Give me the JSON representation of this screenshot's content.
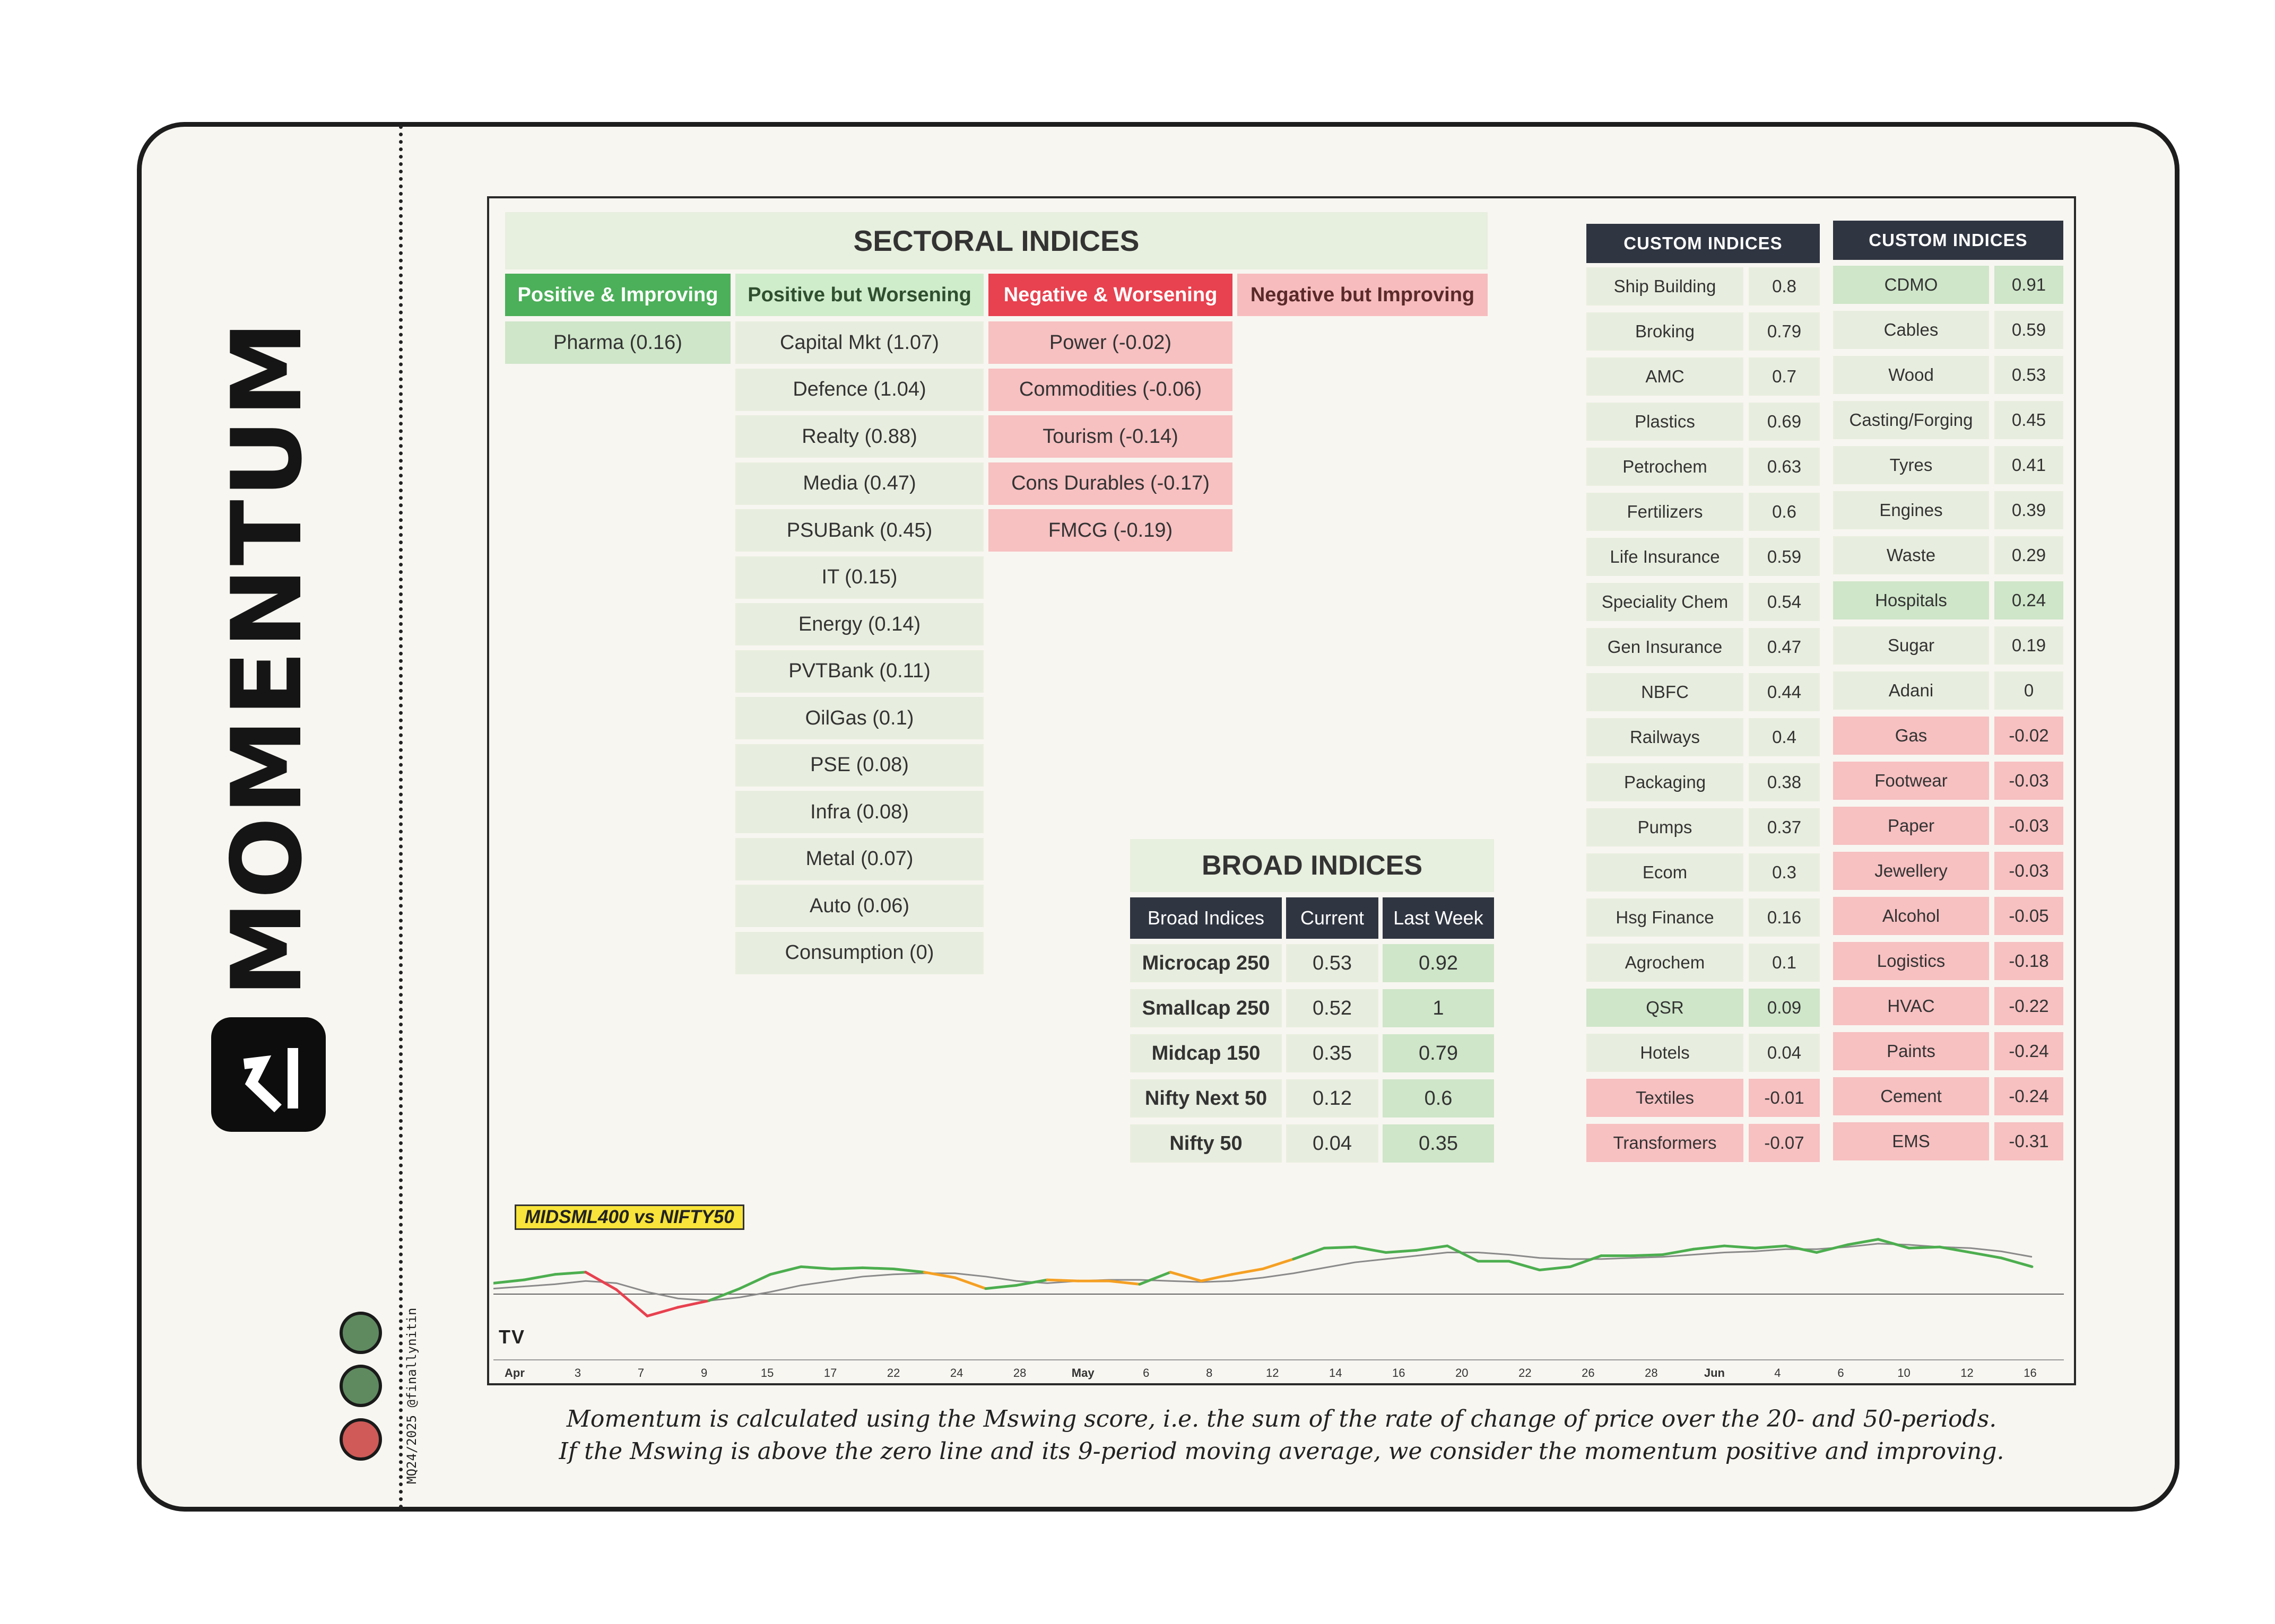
{
  "brand": {
    "wordmark": "MOMENTUM",
    "credit": "MQ24/2025 @finallynitin"
  },
  "colors": {
    "pos_improving": "#4caf59",
    "pos_worsening": "#cfeccb",
    "neg_worsening": "#e8414f",
    "neg_improving": "#f7bcbe",
    "green_cell": "#cfe6c9",
    "neutral_cell": "#e8eedf",
    "red_cell": "#f7c0c1",
    "dark_header": "#2f3541",
    "light_green": "#5f8a60",
    "light_red": "#cf5a57"
  },
  "status_lights": [
    {
      "name": "green"
    },
    {
      "name": "green"
    },
    {
      "name": "red"
    }
  ],
  "sectoral": {
    "title": "SECTORAL INDICES",
    "columns": [
      {
        "label": "Positive & Improving",
        "items": [
          "Pharma (0.16)"
        ]
      },
      {
        "label": "Positive but Worsening",
        "items": [
          "Capital Mkt (1.07)",
          "Defence (1.04)",
          "Realty (0.88)",
          "Media (0.47)",
          "PSUBank (0.45)",
          "IT (0.15)",
          "Energy (0.14)",
          "PVTBank (0.11)",
          "OilGas (0.1)",
          "PSE (0.08)",
          "Infra (0.08)",
          "Metal (0.07)",
          "Auto (0.06)",
          "Consumption (0)"
        ]
      },
      {
        "label": "Negative & Worsening",
        "items": [
          "Power (-0.02)",
          "Commodities (-0.06)",
          "Tourism (-0.14)",
          "Cons Durables (-0.17)",
          "FMCG (-0.19)"
        ]
      },
      {
        "label": "Negative but Improving",
        "items": []
      }
    ]
  },
  "broad": {
    "title": "BROAD INDICES",
    "headers": [
      "Broad Indices",
      "Current",
      "Last Week"
    ],
    "rows": [
      {
        "name": "Microcap 250",
        "current": "0.53",
        "last_week": "0.92"
      },
      {
        "name": "Smallcap 250",
        "current": "0.52",
        "last_week": "1"
      },
      {
        "name": "Midcap 150",
        "current": "0.35",
        "last_week": "0.79"
      },
      {
        "name": "Nifty Next 50",
        "current": "0.12",
        "last_week": "0.6"
      },
      {
        "name": "Nifty 50",
        "current": "0.04",
        "last_week": "0.35"
      }
    ]
  },
  "custom1": {
    "title": "CUSTOM INDICES",
    "rows": [
      {
        "name": "Ship Building",
        "value": "0.8",
        "tone": "neutral"
      },
      {
        "name": "Broking",
        "value": "0.79",
        "tone": "neutral"
      },
      {
        "name": "AMC",
        "value": "0.7",
        "tone": "neutral"
      },
      {
        "name": "Plastics",
        "value": "0.69",
        "tone": "neutral"
      },
      {
        "name": "Petrochem",
        "value": "0.63",
        "tone": "neutral"
      },
      {
        "name": "Fertilizers",
        "value": "0.6",
        "tone": "neutral"
      },
      {
        "name": "Life Insurance",
        "value": "0.59",
        "tone": "neutral"
      },
      {
        "name": "Speciality Chem",
        "value": "0.54",
        "tone": "neutral"
      },
      {
        "name": "Gen Insurance",
        "value": "0.47",
        "tone": "neutral"
      },
      {
        "name": "NBFC",
        "value": "0.44",
        "tone": "neutral"
      },
      {
        "name": "Railways",
        "value": "0.4",
        "tone": "neutral"
      },
      {
        "name": "Packaging",
        "value": "0.38",
        "tone": "neutral"
      },
      {
        "name": "Pumps",
        "value": "0.37",
        "tone": "neutral"
      },
      {
        "name": "Ecom",
        "value": "0.3",
        "tone": "neutral"
      },
      {
        "name": "Hsg Finance",
        "value": "0.16",
        "tone": "neutral"
      },
      {
        "name": "Agrochem",
        "value": "0.1",
        "tone": "neutral"
      },
      {
        "name": "QSR",
        "value": "0.09",
        "tone": "green"
      },
      {
        "name": "Hotels",
        "value": "0.04",
        "tone": "neutral"
      },
      {
        "name": "Textiles",
        "value": "-0.01",
        "tone": "red"
      },
      {
        "name": "Transformers",
        "value": "-0.07",
        "tone": "red"
      }
    ]
  },
  "custom2": {
    "title": "CUSTOM INDICES",
    "rows": [
      {
        "name": "CDMO",
        "value": "0.91",
        "tone": "green"
      },
      {
        "name": "Cables",
        "value": "0.59",
        "tone": "neutral"
      },
      {
        "name": "Wood",
        "value": "0.53",
        "tone": "neutral"
      },
      {
        "name": "Casting/Forging",
        "value": "0.45",
        "tone": "neutral"
      },
      {
        "name": "Tyres",
        "value": "0.41",
        "tone": "neutral"
      },
      {
        "name": "Engines",
        "value": "0.39",
        "tone": "neutral"
      },
      {
        "name": "Waste",
        "value": "0.29",
        "tone": "neutral"
      },
      {
        "name": "Hospitals",
        "value": "0.24",
        "tone": "green"
      },
      {
        "name": "Sugar",
        "value": "0.19",
        "tone": "neutral"
      },
      {
        "name": "Adani",
        "value": "0",
        "tone": "neutral"
      },
      {
        "name": "Gas",
        "value": "-0.02",
        "tone": "red"
      },
      {
        "name": "Footwear",
        "value": "-0.03",
        "tone": "red"
      },
      {
        "name": "Paper",
        "value": "-0.03",
        "tone": "red"
      },
      {
        "name": "Jewellery",
        "value": "-0.03",
        "tone": "red"
      },
      {
        "name": "Alcohol",
        "value": "-0.05",
        "tone": "red"
      },
      {
        "name": "Logistics",
        "value": "-0.18",
        "tone": "red"
      },
      {
        "name": "HVAC",
        "value": "-0.22",
        "tone": "red"
      },
      {
        "name": "Paints",
        "value": "-0.24",
        "tone": "red"
      },
      {
        "name": "Cement",
        "value": "-0.24",
        "tone": "red"
      },
      {
        "name": "EMS",
        "value": "-0.31",
        "tone": "red"
      }
    ]
  },
  "chart_data": {
    "type": "line",
    "title": "MIDSML400 vs NIFTY50",
    "xlabel": "",
    "ylabel": "",
    "x_ticks": [
      "Apr",
      "3",
      "7",
      "9",
      "15",
      "17",
      "22",
      "24",
      "28",
      "May",
      "6",
      "8",
      "12",
      "14",
      "16",
      "20",
      "22",
      "26",
      "28",
      "Jun",
      "4",
      "6",
      "10",
      "12",
      "16"
    ],
    "ylim": [
      -0.3,
      0.6
    ],
    "zero_line": 0,
    "series": [
      {
        "name": "MIDSML400 vs NIFTY50 Mswing",
        "values": [
          0.1,
          0.13,
          0.18,
          0.2,
          0.04,
          -0.2,
          -0.12,
          -0.06,
          0.05,
          0.18,
          0.25,
          0.23,
          0.24,
          0.23,
          0.2,
          0.15,
          0.05,
          0.08,
          0.13,
          0.12,
          0.12,
          0.09,
          0.2,
          0.12,
          0.18,
          0.23,
          0.32,
          0.42,
          0.43,
          0.38,
          0.4,
          0.44,
          0.3,
          0.3,
          0.22,
          0.25,
          0.35,
          0.35,
          0.36,
          0.41,
          0.44,
          0.42,
          0.44,
          0.38,
          0.45,
          0.5,
          0.42,
          0.43,
          0.38,
          0.33,
          0.25
        ],
        "states": [
          "pos_worsening",
          "pos_improving",
          "pos_improving",
          "pos_improving",
          "neg_worsening",
          "neg_worsening",
          "neg_improving",
          "neg_improving",
          "pos_improving",
          "pos_improving",
          "pos_improving",
          "pos_improving",
          "pos_improving",
          "pos_improving",
          "pos_improving",
          "pos_worsening",
          "pos_worsening",
          "pos_improving",
          "pos_improving",
          "pos_worsening",
          "pos_worsening",
          "pos_worsening",
          "pos_improving",
          "pos_worsening",
          "pos_worsening",
          "pos_worsening",
          "pos_worsening",
          "pos_improving",
          "pos_improving",
          "pos_improving",
          "pos_improving",
          "pos_improving",
          "pos_improving",
          "pos_improving",
          "pos_improving",
          "pos_improving",
          "pos_improving",
          "pos_improving",
          "pos_improving",
          "pos_improving",
          "pos_improving",
          "pos_improving",
          "pos_improving",
          "pos_improving",
          "pos_improving",
          "pos_improving",
          "pos_improving",
          "pos_improving",
          "pos_improving",
          "pos_improving",
          "pos_improving"
        ]
      },
      {
        "name": "9-period moving average",
        "values": [
          0.05,
          0.07,
          0.09,
          0.12,
          0.1,
          0.02,
          -0.04,
          -0.06,
          -0.03,
          0.02,
          0.08,
          0.12,
          0.16,
          0.18,
          0.19,
          0.19,
          0.16,
          0.12,
          0.1,
          0.12,
          0.13,
          0.13,
          0.12,
          0.11,
          0.12,
          0.15,
          0.19,
          0.24,
          0.29,
          0.32,
          0.35,
          0.38,
          0.38,
          0.36,
          0.33,
          0.32,
          0.32,
          0.33,
          0.34,
          0.36,
          0.38,
          0.39,
          0.41,
          0.41,
          0.43,
          0.46,
          0.45,
          0.43,
          0.42,
          0.39,
          0.34
        ]
      }
    ],
    "state_colors": {
      "pos_improving": "#4cae4f",
      "pos_worsening": "#f5a023",
      "neg_worsening": "#e8414f",
      "neg_improving": "#e8414f"
    }
  },
  "footnote": {
    "line1": "Momentum is calculated using the Mswing score, i.e. the sum of the rate of change of price over the 20- and 50-periods.",
    "line2": "If the Mswing is above the zero line and its 9-period moving average, we consider the momentum positive and improving."
  }
}
